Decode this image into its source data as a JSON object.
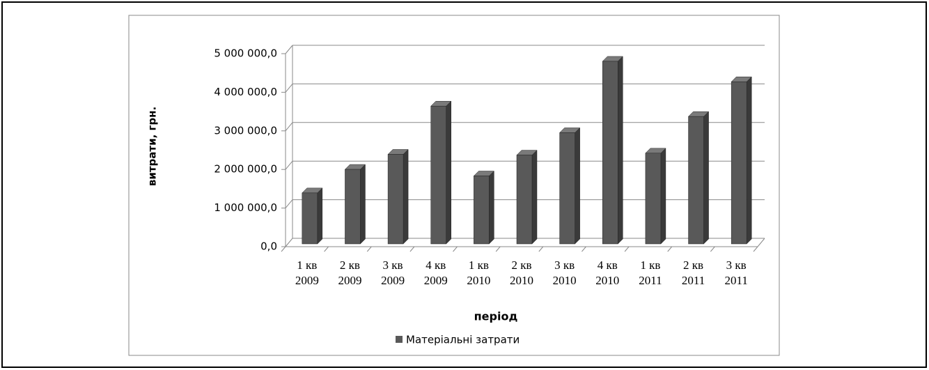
{
  "chart_data": {
    "type": "bar3d",
    "x_label": "період",
    "y_label": "витрати, грн.",
    "categories": [
      "1 кв 2009",
      "2 кв 2009",
      "3 кв 2009",
      "4 кв 2009",
      "1 кв 2010",
      "2 кв 2010",
      "3 кв 2010",
      "4 кв 2010",
      "1 кв 2011",
      "2 кв 2011",
      "3 кв 2011"
    ],
    "series": [
      {
        "name": "Матеріальні затрати",
        "color": "#595959",
        "values": [
          1320000,
          1930000,
          2320000,
          3570000,
          1760000,
          2300000,
          2880000,
          4730000,
          2350000,
          3300000,
          4200000
        ]
      }
    ],
    "ylim": [
      0,
      5000000
    ],
    "yticks": [
      {
        "value": 0,
        "label": "0,0"
      },
      {
        "value": 1000000,
        "label": "1 000 000,0"
      },
      {
        "value": 2000000,
        "label": "2 000 000,0"
      },
      {
        "value": 3000000,
        "label": "3 000 000,0"
      },
      {
        "value": 4000000,
        "label": "4 000 000,0"
      },
      {
        "value": 5000000,
        "label": "5 000 000,0"
      }
    ],
    "grid": true,
    "legend": "bottom"
  }
}
